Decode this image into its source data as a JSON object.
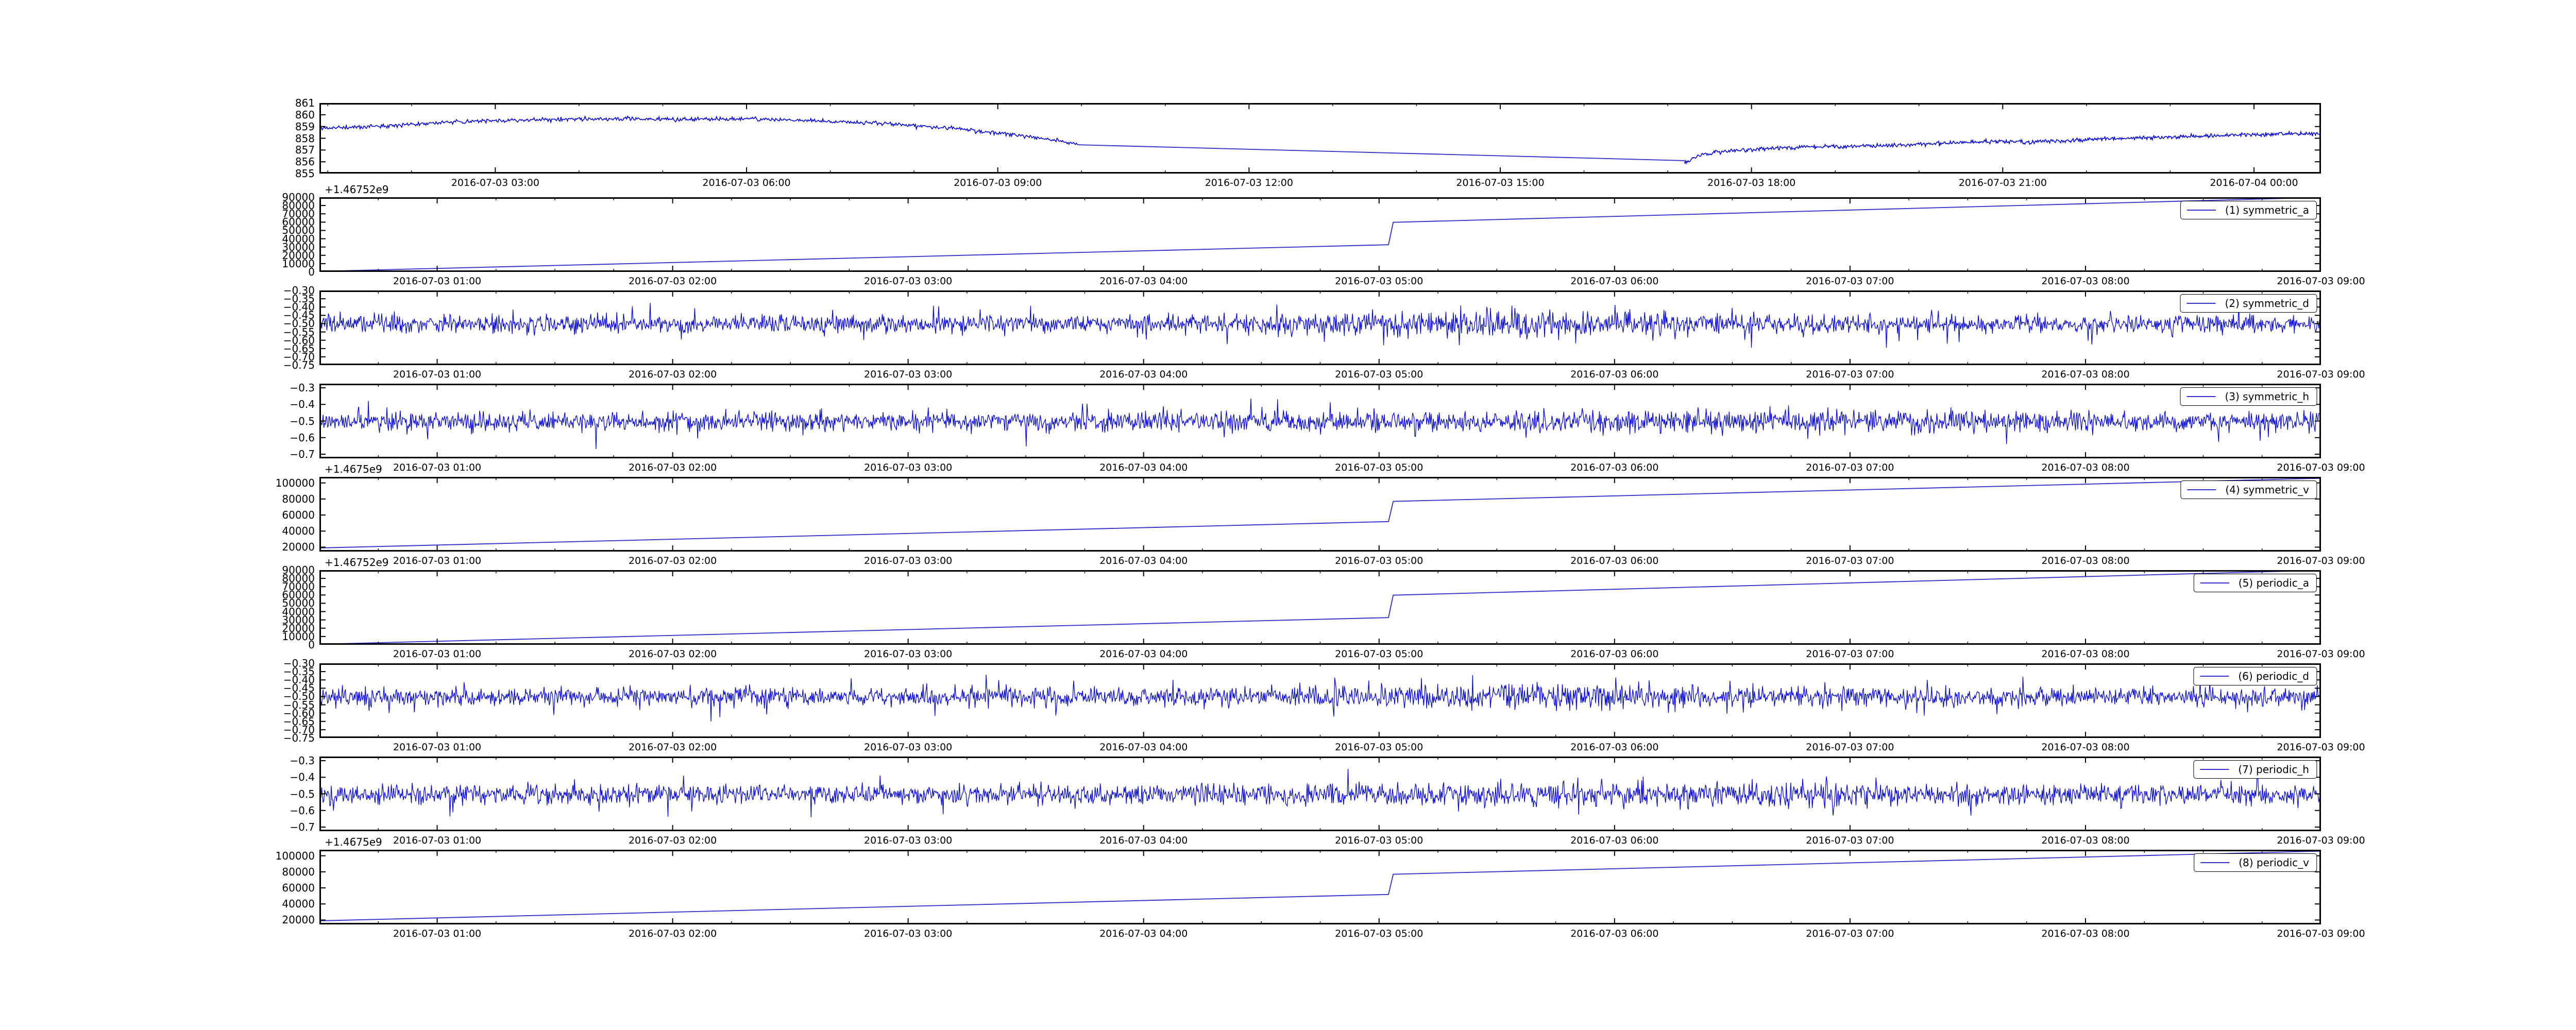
{
  "figure": {
    "background": "#ffffff",
    "frame_color": "#000000",
    "noise_line_color": "#0000dd",
    "ramp_line_color": "#3333cc",
    "legend_sample_color": "#3333cc"
  },
  "shared": {
    "row_xlim": [
      0.5,
      9.0
    ],
    "row_xticks": [
      {
        "v": 1,
        "label": "2016-07-03 01:00"
      },
      {
        "v": 2,
        "label": "2016-07-03 02:00"
      },
      {
        "v": 3,
        "label": "2016-07-03 03:00"
      },
      {
        "v": 4,
        "label": "2016-07-03 04:00"
      },
      {
        "v": 5,
        "label": "2016-07-03 05:00"
      },
      {
        "v": 6,
        "label": "2016-07-03 06:00"
      },
      {
        "v": 7,
        "label": "2016-07-03 07:00"
      },
      {
        "v": 8,
        "label": "2016-07-03 08:00"
      },
      {
        "v": 9,
        "label": "2016-07-03 09:00"
      }
    ]
  },
  "chart_data": [
    {
      "type": "line",
      "name": "raw-signal",
      "legend": null,
      "y_offset_text": null,
      "ylim": [
        855,
        861
      ],
      "yticks": [
        {
          "v": 861,
          "label": "861"
        },
        {
          "v": 860,
          "label": "860"
        },
        {
          "v": 859,
          "label": "859"
        },
        {
          "v": 858,
          "label": "858"
        },
        {
          "v": 857,
          "label": "857"
        },
        {
          "v": 856,
          "label": "856"
        },
        {
          "v": 855,
          "label": "855"
        }
      ],
      "xlim": [
        0.9,
        24.8
      ],
      "xticks": [
        {
          "v": 3,
          "label": "2016-07-03 03:00"
        },
        {
          "v": 6,
          "label": "2016-07-03 06:00"
        },
        {
          "v": 9,
          "label": "2016-07-03 09:00"
        },
        {
          "v": 12,
          "label": "2016-07-03 12:00"
        },
        {
          "v": 15,
          "label": "2016-07-03 15:00"
        },
        {
          "v": 18,
          "label": "2016-07-03 18:00"
        },
        {
          "v": 21,
          "label": "2016-07-03 21:00"
        },
        {
          "v": 24,
          "label": "2016-07-04 00:00"
        }
      ],
      "x_minor_step": 1,
      "series": [
        {
          "kind": "noisy",
          "seed": 11,
          "n": 820,
          "sigma": 0.085,
          "spike_p": 0.012,
          "spike_amp": 0.17,
          "keypoints": [
            [
              0.9,
              858.85
            ],
            [
              1.5,
              859.0
            ],
            [
              2.2,
              859.3
            ],
            [
              3.0,
              859.5
            ],
            [
              3.8,
              859.6
            ],
            [
              4.6,
              859.66
            ],
            [
              5.3,
              859.6
            ],
            [
              5.9,
              859.66
            ],
            [
              6.5,
              859.55
            ],
            [
              7.2,
              859.4
            ],
            [
              7.9,
              859.15
            ],
            [
              8.5,
              858.82
            ],
            [
              9.0,
              858.45
            ],
            [
              9.5,
              858.0
            ],
            [
              9.95,
              857.55
            ]
          ]
        },
        {
          "kind": "line",
          "keypoints": [
            [
              9.95,
              857.45
            ],
            [
              17.2,
              856.1
            ]
          ]
        },
        {
          "kind": "noisy",
          "seed": 22,
          "n": 820,
          "sigma": 0.082,
          "spike_p": 0.012,
          "spike_amp": 0.15,
          "keypoints": [
            [
              17.2,
              855.95
            ],
            [
              17.35,
              856.5
            ],
            [
              17.55,
              856.8
            ],
            [
              17.9,
              857.0
            ],
            [
              18.3,
              857.15
            ],
            [
              18.8,
              857.28
            ],
            [
              19.4,
              857.35
            ],
            [
              19.9,
              857.45
            ],
            [
              20.4,
              857.6
            ],
            [
              20.9,
              857.75
            ],
            [
              21.4,
              857.7
            ],
            [
              21.9,
              857.85
            ],
            [
              22.4,
              858.0
            ],
            [
              22.9,
              858.1
            ],
            [
              23.4,
              858.2
            ],
            [
              24.0,
              858.32
            ],
            [
              24.8,
              858.42
            ]
          ]
        }
      ]
    },
    {
      "type": "line",
      "name": "symmetric-a",
      "legend": "(1) symmetric_a",
      "y_offset_text": "+1.46752e9",
      "ylim": [
        0,
        90000
      ],
      "yticks": [
        {
          "v": 90000,
          "label": "90000"
        },
        {
          "v": 80000,
          "label": "80000"
        },
        {
          "v": 70000,
          "label": "70000"
        },
        {
          "v": 60000,
          "label": "60000"
        },
        {
          "v": 50000,
          "label": "50000"
        },
        {
          "v": 40000,
          "label": "40000"
        },
        {
          "v": 30000,
          "label": "30000"
        },
        {
          "v": 20000,
          "label": "20000"
        },
        {
          "v": 10000,
          "label": "10000"
        },
        {
          "v": 0,
          "label": "0"
        }
      ],
      "xlim": "$row",
      "xticks": "$row",
      "x_minor_step": 0.25,
      "series": [
        {
          "kind": "line",
          "keypoints": [
            [
              0.5,
              700
            ],
            [
              5.04,
              32800
            ],
            [
              5.06,
              59800
            ],
            [
              9.0,
              89800
            ]
          ]
        }
      ]
    },
    {
      "type": "line",
      "name": "symmetric-d",
      "legend": "(2) symmetric_d",
      "y_offset_text": null,
      "ylim": [
        -0.75,
        -0.3
      ],
      "yticks": [
        {
          "v": -0.3,
          "label": "−0.30"
        },
        {
          "v": -0.35,
          "label": "−0.35"
        },
        {
          "v": -0.4,
          "label": "−0.40"
        },
        {
          "v": -0.45,
          "label": "−0.45"
        },
        {
          "v": -0.5,
          "label": "−0.50"
        },
        {
          "v": -0.55,
          "label": "−0.55"
        },
        {
          "v": -0.6,
          "label": "−0.60"
        },
        {
          "v": -0.65,
          "label": "−0.65"
        },
        {
          "v": -0.7,
          "label": "−0.70"
        },
        {
          "v": -0.75,
          "label": "−0.75"
        }
      ],
      "xlim": "$row",
      "xticks": "$row",
      "x_minor_step": 0.25,
      "series": [
        {
          "kind": "noisy",
          "seed": 33,
          "n": 2700,
          "sigma": 0.026,
          "spike_p": 0.035,
          "spike_amp": 0.1,
          "boost": {
            "center": 5.7,
            "width": 0.9,
            "gain": 0.4
          },
          "keypoints": [
            [
              0.5,
              -0.502
            ],
            [
              9.0,
              -0.502
            ]
          ]
        }
      ]
    },
    {
      "type": "line",
      "name": "symmetric-h",
      "legend": "(3) symmetric_h",
      "y_offset_text": null,
      "ylim": [
        -0.725,
        -0.275
      ],
      "yticks": [
        {
          "v": -0.3,
          "label": "−0.3"
        },
        {
          "v": -0.4,
          "label": "−0.4"
        },
        {
          "v": -0.5,
          "label": "−0.5"
        },
        {
          "v": -0.6,
          "label": "−0.6"
        },
        {
          "v": -0.7,
          "label": "−0.7"
        }
      ],
      "xlim": "$row",
      "xticks": "$row",
      "x_minor_step": 0.25,
      "series": [
        {
          "kind": "noisy",
          "seed": 44,
          "n": 2700,
          "sigma": 0.028,
          "spike_p": 0.03,
          "spike_amp": 0.095,
          "boost": {
            "center": 6.3,
            "width": 1.2,
            "gain": 0.3
          },
          "keypoints": [
            [
              0.5,
              -0.503
            ],
            [
              9.0,
              -0.503
            ]
          ]
        }
      ]
    },
    {
      "type": "line",
      "name": "symmetric-v",
      "legend": "(4) symmetric_v",
      "y_offset_text": "+1.4675e9",
      "ylim": [
        14500,
        107500
      ],
      "yticks": [
        {
          "v": 100000,
          "label": "100000"
        },
        {
          "v": 80000,
          "label": "80000"
        },
        {
          "v": 60000,
          "label": "60000"
        },
        {
          "v": 40000,
          "label": "40000"
        },
        {
          "v": 20000,
          "label": "20000"
        }
      ],
      "xlim": "$row",
      "xticks": "$row",
      "x_minor_step": 0.25,
      "series": [
        {
          "kind": "line",
          "keypoints": [
            [
              0.5,
              19000
            ],
            [
              5.04,
              51800
            ],
            [
              5.06,
              77000
            ],
            [
              9.0,
              105800
            ]
          ]
        }
      ]
    },
    {
      "type": "line",
      "name": "periodic-a",
      "legend": "(5) periodic_a",
      "y_offset_text": "+1.46752e9",
      "ylim": [
        0,
        90000
      ],
      "yticks": [
        {
          "v": 90000,
          "label": "90000"
        },
        {
          "v": 80000,
          "label": "80000"
        },
        {
          "v": 70000,
          "label": "70000"
        },
        {
          "v": 60000,
          "label": "60000"
        },
        {
          "v": 50000,
          "label": "50000"
        },
        {
          "v": 40000,
          "label": "40000"
        },
        {
          "v": 30000,
          "label": "30000"
        },
        {
          "v": 20000,
          "label": "20000"
        },
        {
          "v": 10000,
          "label": "10000"
        },
        {
          "v": 0,
          "label": "0"
        }
      ],
      "xlim": "$row",
      "xticks": "$row",
      "x_minor_step": 0.25,
      "series": [
        {
          "kind": "line",
          "keypoints": [
            [
              0.5,
              700
            ],
            [
              5.04,
              32800
            ],
            [
              5.06,
              59800
            ],
            [
              9.0,
              89800
            ]
          ]
        }
      ]
    },
    {
      "type": "line",
      "name": "periodic-d",
      "legend": "(6) periodic_d",
      "y_offset_text": null,
      "ylim": [
        -0.75,
        -0.3
      ],
      "yticks": [
        {
          "v": -0.3,
          "label": "−0.30"
        },
        {
          "v": -0.35,
          "label": "−0.35"
        },
        {
          "v": -0.4,
          "label": "−0.40"
        },
        {
          "v": -0.45,
          "label": "−0.45"
        },
        {
          "v": -0.5,
          "label": "−0.50"
        },
        {
          "v": -0.55,
          "label": "−0.55"
        },
        {
          "v": -0.6,
          "label": "−0.60"
        },
        {
          "v": -0.65,
          "label": "−0.65"
        },
        {
          "v": -0.7,
          "label": "−0.70"
        },
        {
          "v": -0.75,
          "label": "−0.75"
        }
      ],
      "xlim": "$row",
      "xticks": "$row",
      "x_minor_step": 0.25,
      "series": [
        {
          "kind": "noisy",
          "seed": 55,
          "n": 2700,
          "sigma": 0.026,
          "spike_p": 0.035,
          "spike_amp": 0.1,
          "boost": {
            "center": 5.7,
            "width": 0.9,
            "gain": 0.4
          },
          "keypoints": [
            [
              0.5,
              -0.502
            ],
            [
              9.0,
              -0.502
            ]
          ]
        }
      ]
    },
    {
      "type": "line",
      "name": "periodic-h",
      "legend": "(7) periodic_h",
      "y_offset_text": null,
      "ylim": [
        -0.725,
        -0.275
      ],
      "yticks": [
        {
          "v": -0.3,
          "label": "−0.3"
        },
        {
          "v": -0.4,
          "label": "−0.4"
        },
        {
          "v": -0.5,
          "label": "−0.5"
        },
        {
          "v": -0.6,
          "label": "−0.6"
        },
        {
          "v": -0.7,
          "label": "−0.7"
        }
      ],
      "xlim": "$row",
      "xticks": "$row",
      "x_minor_step": 0.25,
      "series": [
        {
          "kind": "noisy",
          "seed": 66,
          "n": 2700,
          "sigma": 0.028,
          "spike_p": 0.03,
          "spike_amp": 0.095,
          "boost": {
            "center": 6.3,
            "width": 1.2,
            "gain": 0.3
          },
          "keypoints": [
            [
              0.5,
              -0.503
            ],
            [
              9.0,
              -0.503
            ]
          ]
        }
      ]
    },
    {
      "type": "line",
      "name": "periodic-v",
      "legend": "(8) periodic_v",
      "y_offset_text": "+1.4675e9",
      "ylim": [
        14500,
        107500
      ],
      "yticks": [
        {
          "v": 100000,
          "label": "100000"
        },
        {
          "v": 80000,
          "label": "80000"
        },
        {
          "v": 60000,
          "label": "60000"
        },
        {
          "v": 40000,
          "label": "40000"
        },
        {
          "v": 20000,
          "label": "20000"
        }
      ],
      "xlim": "$row",
      "xticks": "$row",
      "x_minor_step": 0.25,
      "series": [
        {
          "kind": "line",
          "keypoints": [
            [
              0.5,
              19000
            ],
            [
              5.04,
              51800
            ],
            [
              5.06,
              77000
            ],
            [
              9.0,
              105800
            ]
          ]
        }
      ]
    }
  ]
}
